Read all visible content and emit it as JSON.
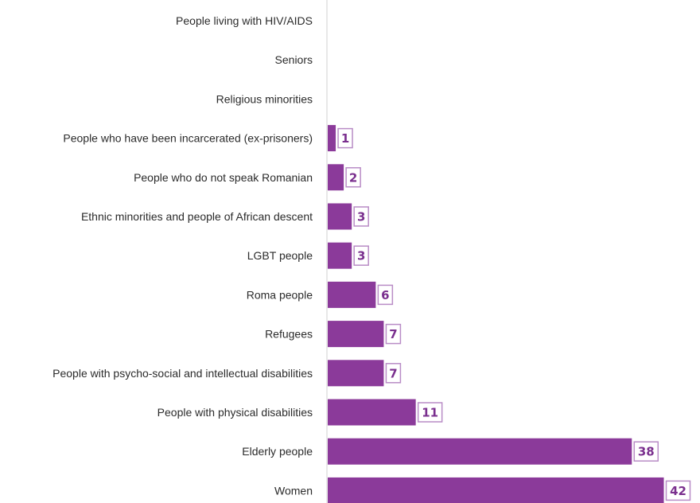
{
  "chart_data": {
    "type": "bar",
    "orientation": "horizontal",
    "categories": [
      "People living with  HIV/AIDS",
      "Seniors",
      "Religious minorities",
      "People who have been incarcerated (ex-prisoners)",
      "People who do not speak Romanian",
      "Ethnic minorities and people of African descent",
      "LGBT people",
      "Roma people",
      "Refugees",
      "People with psycho-social and intellectual disabilities",
      "People with physical disabilities",
      "Elderly people",
      "Women"
    ],
    "values": [
      0,
      0,
      0,
      1,
      2,
      3,
      3,
      6,
      7,
      7,
      11,
      38,
      42
    ],
    "xlim": [
      0,
      42
    ],
    "grid": false,
    "legend": "none",
    "colors": {
      "bar": "#8b3a9a",
      "label_text": "#7a2f8e",
      "label_border": "#b98cc6",
      "axis": "#d0d0d0"
    }
  }
}
